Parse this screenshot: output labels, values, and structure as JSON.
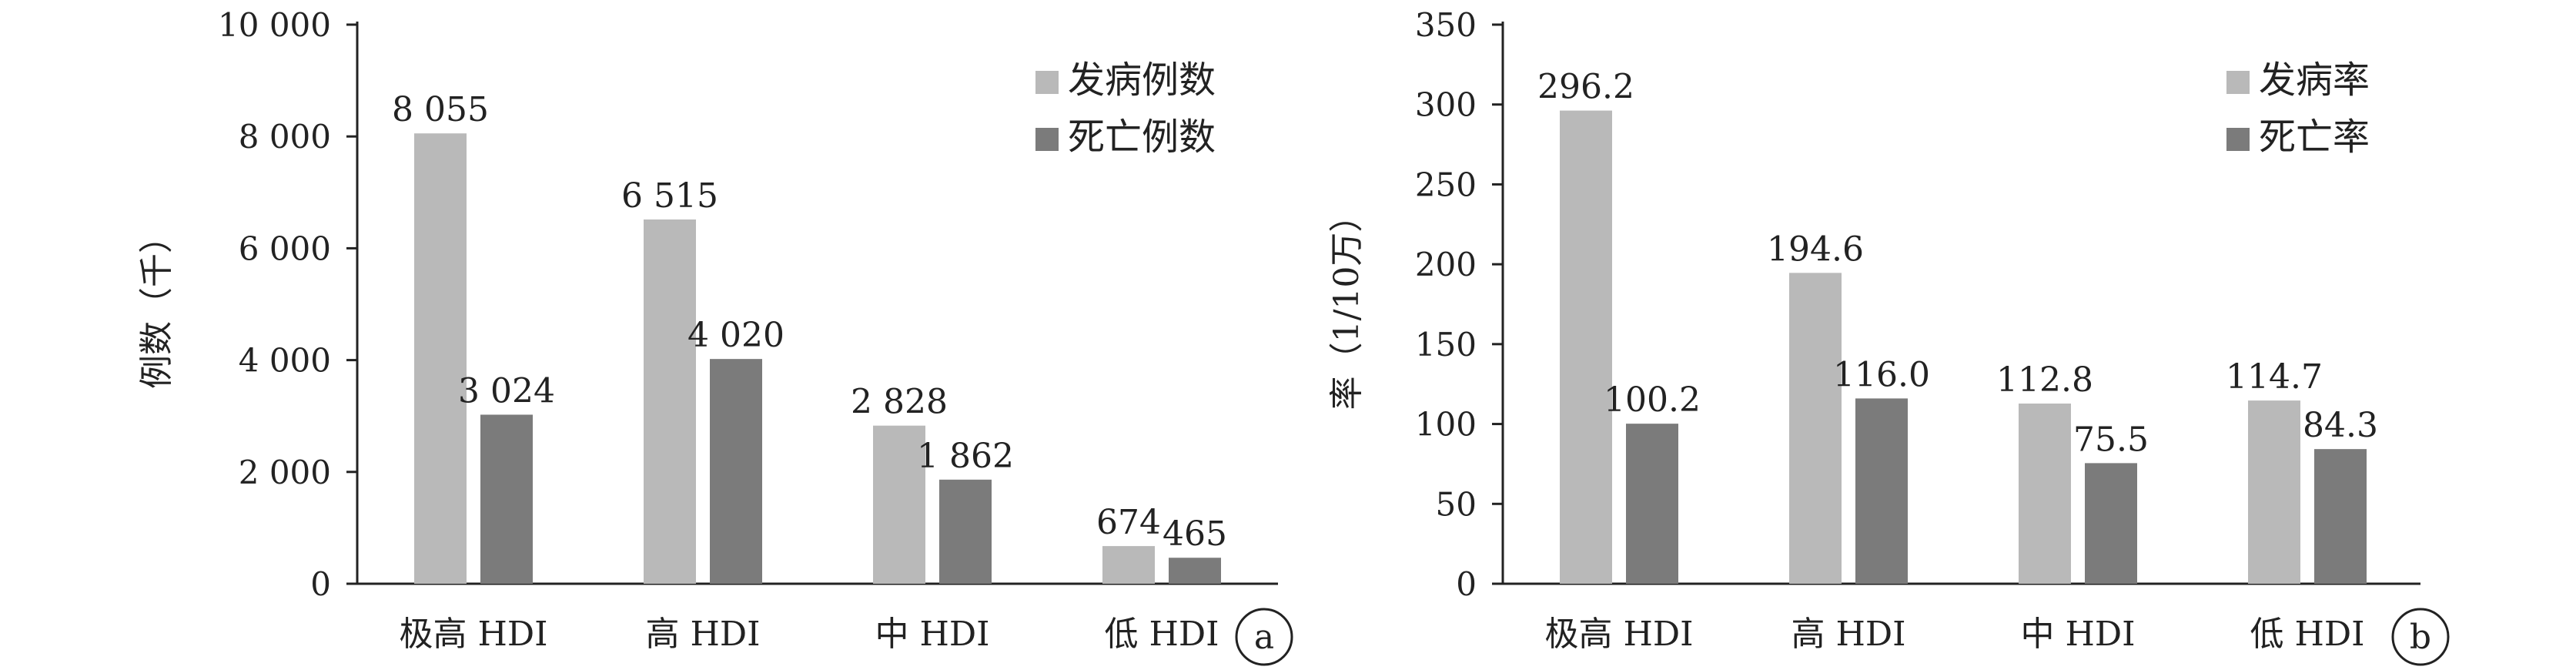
{
  "colors": {
    "incidence": "#b9b9b9",
    "mortality": "#7b7b7b",
    "axis": "#222222"
  },
  "chart_data": [
    {
      "panel": "a",
      "type": "bar",
      "ylabel": "例数（千）",
      "ylim": [
        0,
        10000
      ],
      "yticks": [
        0,
        2000,
        4000,
        6000,
        8000,
        10000
      ],
      "ytick_labels": [
        "0",
        "2 000",
        "4 000",
        "6 000",
        "8 000",
        "10 000"
      ],
      "categories": [
        "极高 HDI",
        "高 HDI",
        "中 HDI",
        "低 HDI"
      ],
      "series": [
        {
          "name": "发病例数",
          "values": [
            8055,
            6515,
            2828,
            674
          ],
          "labels": [
            "8 055",
            "6 515",
            "2 828",
            "674"
          ]
        },
        {
          "name": "死亡例数",
          "values": [
            3024,
            4020,
            1862,
            465
          ],
          "labels": [
            "3 024",
            "4 020",
            "1 862",
            "465"
          ]
        }
      ],
      "legend": "top-right"
    },
    {
      "panel": "b",
      "type": "bar",
      "ylabel": "率（1/10万）",
      "ylim": [
        0,
        350
      ],
      "yticks": [
        0,
        50,
        100,
        150,
        200,
        250,
        300,
        350
      ],
      "ytick_labels": [
        "0",
        "50",
        "100",
        "150",
        "200",
        "250",
        "300",
        "350"
      ],
      "categories": [
        "极高 HDI",
        "高 HDI",
        "中 HDI",
        "低 HDI"
      ],
      "series": [
        {
          "name": "发病率",
          "values": [
            296.2,
            194.6,
            112.8,
            114.7
          ],
          "labels": [
            "296.2",
            "194.6",
            "112.8",
            "114.7"
          ]
        },
        {
          "name": "死亡率",
          "values": [
            100.2,
            116.0,
            75.5,
            84.3
          ],
          "labels": [
            "100.2",
            "116.0",
            "75.5",
            "84.3"
          ]
        }
      ],
      "legend": "top-right"
    }
  ]
}
